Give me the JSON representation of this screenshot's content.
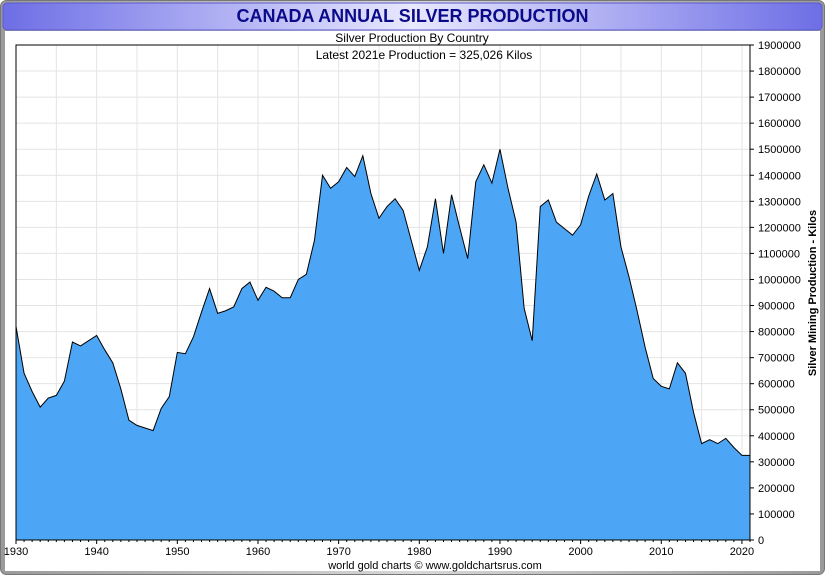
{
  "chart_data": {
    "type": "area",
    "title": "CANADA ANNUAL SILVER PRODUCTION",
    "subtitle": "Silver Production By Country",
    "annotation": "Latest 2021e Production = 325,026 Kilos",
    "xlabel": "",
    "ylabel": "Silver Mining Production - Kilos",
    "credit": "world gold charts © www.goldchartsrus.com",
    "xlim": [
      1930,
      2021
    ],
    "ylim": [
      0,
      1900000
    ],
    "x_ticks": [
      1930,
      1940,
      1950,
      1960,
      1970,
      1980,
      1990,
      2000,
      2010,
      2020
    ],
    "y_ticks": [
      0,
      100000,
      200000,
      300000,
      400000,
      500000,
      600000,
      700000,
      800000,
      900000,
      1000000,
      1100000,
      1200000,
      1300000,
      1400000,
      1500000,
      1600000,
      1700000,
      1800000,
      1900000
    ],
    "grid": true,
    "fill_color": "#4da6f5",
    "line_color": "#000000",
    "title_color": "#0b0b8a",
    "header_color": "#8a8aef",
    "series": [
      {
        "x": [
          1930,
          1931,
          1932,
          1933,
          1934,
          1935,
          1936,
          1937,
          1938,
          1939,
          1940,
          1941,
          1942,
          1943,
          1944,
          1945,
          1946,
          1947,
          1948,
          1949,
          1950,
          1951,
          1952,
          1953,
          1954,
          1955,
          1956,
          1957,
          1958,
          1959,
          1960,
          1961,
          1962,
          1963,
          1964,
          1965,
          1966,
          1967,
          1968,
          1969,
          1970,
          1971,
          1972,
          1973,
          1974,
          1975,
          1976,
          1977,
          1978,
          1979,
          1980,
          1981,
          1982,
          1983,
          1984,
          1985,
          1986,
          1987,
          1988,
          1989,
          1990,
          1991,
          1992,
          1993,
          1994,
          1995,
          1996,
          1997,
          1998,
          1999,
          2000,
          2001,
          2002,
          2003,
          2004,
          2005,
          2006,
          2007,
          2008,
          2009,
          2010,
          2011,
          2012,
          2013,
          2014,
          2015,
          2016,
          2017,
          2018,
          2019,
          2020,
          2021
        ],
        "y": [
          820000,
          640000,
          570000,
          510000,
          545000,
          555000,
          610000,
          760000,
          745000,
          765000,
          785000,
          730000,
          680000,
          580000,
          460000,
          440000,
          430000,
          420000,
          505000,
          550000,
          720000,
          715000,
          780000,
          875000,
          965000,
          870000,
          880000,
          895000,
          965000,
          990000,
          920000,
          970000,
          955000,
          930000,
          930000,
          1000000,
          1020000,
          1150000,
          1400000,
          1350000,
          1375000,
          1430000,
          1395000,
          1475000,
          1330000,
          1235000,
          1280000,
          1310000,
          1265000,
          1150000,
          1035000,
          1125000,
          1310000,
          1100000,
          1325000,
          1200000,
          1080000,
          1375000,
          1440000,
          1370000,
          1500000,
          1350000,
          1220000,
          890000,
          765000,
          1280000,
          1305000,
          1220000,
          1195000,
          1170000,
          1210000,
          1320000,
          1405000,
          1305000,
          1330000,
          1125000,
          1010000,
          880000,
          740000,
          620000,
          590000,
          580000,
          680000,
          640000,
          490000,
          370000,
          385000,
          370000,
          390000,
          355000,
          325026,
          325026
        ]
      }
    ]
  }
}
